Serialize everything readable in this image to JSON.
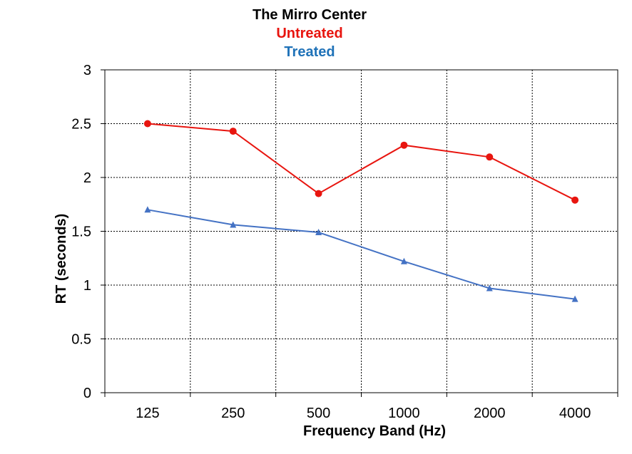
{
  "chart_data": {
    "type": "line",
    "title": "The Mirro Center",
    "subtitle_lines": [
      "Untreated",
      "Treated"
    ],
    "xlabel": "Frequency Band (Hz)",
    "ylabel": "RT (seconds)",
    "categories": [
      "125",
      "250",
      "500",
      "1000",
      "2000",
      "4000"
    ],
    "y_ticks": [
      "0",
      "0.5",
      "1",
      "1.5",
      "2",
      "2.5",
      "3"
    ],
    "ylim": [
      0,
      3
    ],
    "grid": true,
    "series": [
      {
        "name": "Untreated",
        "color": "#e8150f",
        "marker": "circle",
        "values": [
          2.5,
          2.43,
          1.85,
          2.3,
          2.19,
          1.79
        ]
      },
      {
        "name": "Treated",
        "color": "#4472c4",
        "marker": "triangle",
        "values": [
          1.7,
          1.56,
          1.49,
          1.22,
          0.97,
          0.87
        ]
      }
    ]
  }
}
